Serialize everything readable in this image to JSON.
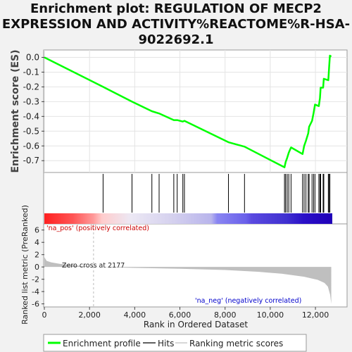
{
  "title_lines": [
    "Enrichment plot: REGULATION OF MECP2",
    "EXPRESSION AND ACTIVITY%REACTOME%R-HSA-",
    "9022692.1"
  ],
  "chart_data": {
    "type": "line",
    "panels": [
      "enrichment-score",
      "hits",
      "ranking-metric"
    ],
    "xlabel": "Rank in Ordered Dataset",
    "x_ticks": [
      0,
      2000,
      4000,
      6000,
      8000,
      10000,
      12000
    ],
    "x_tick_labels": [
      "0",
      "2,000",
      "4,000",
      "6,000",
      "8,000",
      "10,000",
      "12,000"
    ],
    "xlim": [
      0,
      13400
    ],
    "n_genes": 12700,
    "es": {
      "ylabel": "Enrichment score (ES)",
      "ylim": [
        -0.78,
        0.05
      ],
      "y_ticks": [
        0.0,
        -0.1,
        -0.2,
        -0.3,
        -0.4,
        -0.5,
        -0.6,
        -0.7
      ],
      "y_tick_labels": [
        "0.0",
        "-0.1",
        "-0.2",
        "-0.3",
        "-0.4",
        "-0.5",
        "-0.6",
        "-0.7"
      ],
      "color": "#00ff00",
      "points": [
        [
          0,
          0.0
        ],
        [
          2600,
          -0.2
        ],
        [
          3880,
          -0.3
        ],
        [
          4760,
          -0.365
        ],
        [
          5080,
          -0.38
        ],
        [
          5730,
          -0.425
        ],
        [
          5880,
          -0.425
        ],
        [
          6130,
          -0.435
        ],
        [
          6200,
          -0.43
        ],
        [
          8150,
          -0.575
        ],
        [
          8860,
          -0.605
        ],
        [
          10630,
          -0.745
        ],
        [
          10680,
          -0.71
        ],
        [
          10750,
          -0.68
        ],
        [
          10820,
          -0.645
        ],
        [
          10920,
          -0.61
        ],
        [
          11430,
          -0.655
        ],
        [
          11500,
          -0.6
        ],
        [
          11580,
          -0.565
        ],
        [
          11680,
          -0.515
        ],
        [
          11720,
          -0.47
        ],
        [
          11850,
          -0.43
        ],
        [
          11920,
          -0.375
        ],
        [
          11980,
          -0.32
        ],
        [
          12150,
          -0.33
        ],
        [
          12200,
          -0.275
        ],
        [
          12230,
          -0.205
        ],
        [
          12340,
          -0.205
        ],
        [
          12370,
          -0.145
        ],
        [
          12570,
          -0.155
        ],
        [
          12600,
          -0.08
        ],
        [
          12640,
          0.012
        ],
        [
          12700,
          0.005
        ]
      ]
    },
    "hits": [
      2600,
      3880,
      4760,
      5080,
      5730,
      5880,
      6130,
      6200,
      8150,
      8860,
      10630,
      10680,
      10750,
      10820,
      10920,
      11430,
      11500,
      11580,
      11680,
      11720,
      11850,
      11920,
      11980,
      12150,
      12200,
      12230,
      12340,
      12370,
      12570,
      12600,
      12640
    ],
    "metric": {
      "ylabel": "Ranked list metric (PreRanked)",
      "ylim": [
        -6.5,
        7.0
      ],
      "y_ticks": [
        6,
        4,
        2,
        0,
        -2,
        -4,
        -6
      ],
      "y_tick_labels": [
        "6",
        "4",
        "2",
        "0",
        "-2",
        "-4",
        "-6"
      ],
      "zero_cross": 2177,
      "zero_cross_label": "Zero cross at 2177",
      "pos_label": "'na_pos' (positively correlated)",
      "neg_label": "'na_neg' (negatively correlated)",
      "pos_label_color": "#cc0000",
      "neg_label_color": "#0000cc",
      "fill_color": "#bfbfbf",
      "profile": [
        [
          0,
          1.6
        ],
        [
          100,
          1.0
        ],
        [
          300,
          0.75
        ],
        [
          700,
          0.5
        ],
        [
          1200,
          0.3
        ],
        [
          2177,
          0.0
        ],
        [
          4000,
          -0.15
        ],
        [
          6000,
          -0.3
        ],
        [
          8000,
          -0.5
        ],
        [
          9500,
          -0.8
        ],
        [
          10500,
          -1.1
        ],
        [
          11500,
          -1.6
        ],
        [
          12100,
          -2.1
        ],
        [
          12400,
          -2.6
        ],
        [
          12550,
          -3.2
        ],
        [
          12650,
          -4.5
        ],
        [
          12700,
          -6.0
        ]
      ]
    },
    "legend": {
      "items": [
        {
          "label": "Enrichment profile",
          "color": "#00ff00"
        },
        {
          "label": "Hits",
          "color": "#000000"
        },
        {
          "label": "Ranking metric scores",
          "color": "#bfbfbf"
        }
      ]
    }
  }
}
